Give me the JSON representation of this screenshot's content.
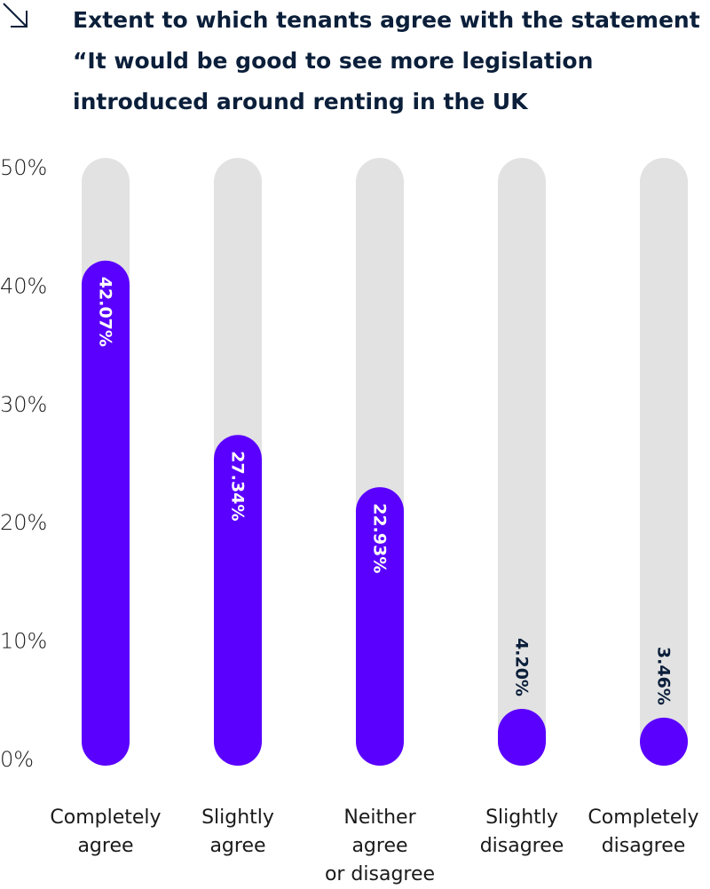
{
  "chart_data": {
    "type": "bar",
    "title": "Extent to which tenants agree with the statement\n“It would be good to see more legislation\nintroduced around renting in the UK",
    "categories": [
      "Completely\nagree",
      "Slightly\nagree",
      "Neither agree\nor disagree",
      "Slightly\ndisagree",
      "Completely\ndisagree"
    ],
    "values": [
      42.07,
      27.34,
      22.93,
      4.2,
      3.46
    ],
    "value_labels": [
      "42.07%",
      "27.34%",
      "22.93%",
      "4.20%",
      "3.46%"
    ],
    "color": "#5a00ff",
    "track_color": "#e2e2e2",
    "ylim": [
      0,
      50
    ],
    "yticks": [
      {
        "value": 0,
        "label": "0%"
      },
      {
        "value": 10,
        "label": "10%"
      },
      {
        "value": 20,
        "label": "20%"
      },
      {
        "value": 30,
        "label": "30%"
      },
      {
        "value": 40,
        "label": "40%"
      },
      {
        "value": 50,
        "label": "50%"
      }
    ]
  }
}
